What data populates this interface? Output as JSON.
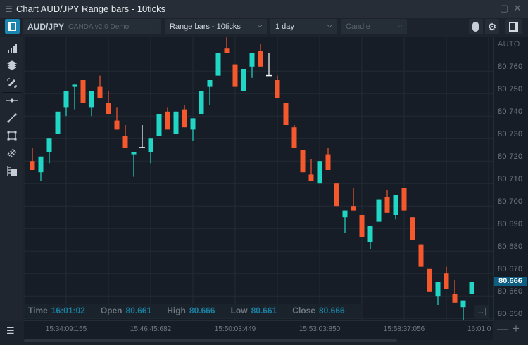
{
  "window": {
    "title": "Chart AUD/JPY Range bars - 10ticks"
  },
  "toolbar": {
    "symbol": "AUD/JPY",
    "broker": "OANDA v2.0 Demo",
    "chart_type": "Range bars - 10ticks",
    "period": "1 day",
    "style": "Candle"
  },
  "left_tools": [
    "indicators-icon",
    "layers-icon",
    "draw-edit-icon",
    "horizontal-line-icon",
    "trend-line-icon",
    "rectangle-icon",
    "fibonacci-icon",
    "object-list-icon"
  ],
  "ohlc": {
    "time_label": "Time",
    "time": "16:01:02",
    "open_label": "Open",
    "open": "80.661",
    "high_label": "High",
    "high": "80.666",
    "low_label": "Low",
    "low": "80.661",
    "close_label": "Close",
    "close": "80.666"
  },
  "yaxis": {
    "auto_label": "AUTO",
    "current_price": "80.666"
  },
  "colors": {
    "up": "#22d6c6",
    "down": "#f5582d",
    "doji": "#ffffff",
    "background": "#161d26",
    "price_tag": "#0d5e80"
  },
  "chart_data": {
    "type": "candlestick",
    "title": "",
    "y_ticks": [
      "80.760",
      "80.750",
      "80.740",
      "80.730",
      "80.720",
      "80.710",
      "80.700",
      "80.690",
      "80.680",
      "80.670",
      "80.660",
      "80.650"
    ],
    "ylim": [
      80.647,
      80.778
    ],
    "x_ticks": [
      "15:34:09:155",
      "15:46:45:682",
      "15:50:03:449",
      "15:53:03:850",
      "15:58:37:056",
      "16:01:0"
    ],
    "x_tick_bar_index": [
      4,
      14,
      24,
      34,
      44,
      54
    ],
    "grid": true,
    "candles": [
      [
        80.72,
        80.726,
        80.716,
        80.716
      ],
      [
        80.715,
        80.722,
        80.711,
        80.722
      ],
      [
        80.724,
        80.73,
        80.719,
        80.73
      ],
      [
        80.732,
        80.742,
        80.732,
        80.742
      ],
      [
        80.744,
        80.751,
        80.74,
        80.751
      ],
      [
        80.753,
        80.754,
        80.743,
        80.754
      ],
      [
        80.756,
        80.756,
        80.746,
        80.746
      ],
      [
        80.744,
        80.751,
        80.74,
        80.751
      ],
      [
        80.753,
        80.758,
        80.748,
        80.748
      ],
      [
        80.746,
        80.751,
        80.741,
        80.741
      ],
      [
        80.738,
        80.744,
        80.734,
        80.734
      ],
      [
        80.731,
        80.736,
        80.726,
        80.726
      ],
      [
        80.723,
        80.724,
        80.713,
        80.724
      ],
      [
        80.726,
        80.736,
        80.726,
        80.726
      ],
      [
        80.724,
        80.73,
        80.719,
        80.73
      ],
      [
        80.731,
        80.741,
        80.731,
        80.741
      ],
      [
        80.742,
        80.744,
        80.734,
        80.734
      ],
      [
        80.732,
        80.742,
        80.732,
        80.742
      ],
      [
        80.743,
        80.745,
        80.735,
        80.735
      ],
      [
        80.734,
        80.739,
        80.729,
        80.739
      ],
      [
        80.741,
        80.751,
        80.741,
        80.751
      ],
      [
        80.753,
        80.756,
        80.745,
        80.756
      ],
      [
        80.758,
        80.768,
        80.758,
        80.768
      ],
      [
        80.77,
        80.775,
        80.768,
        80.768
      ],
      [
        80.763,
        80.763,
        80.753,
        80.753
      ],
      [
        80.751,
        80.761,
        80.751,
        80.761
      ],
      [
        80.762,
        80.768,
        80.757,
        80.768
      ],
      [
        80.769,
        80.772,
        80.762,
        80.762
      ],
      [
        80.758,
        80.768,
        80.758,
        80.758
      ],
      [
        80.756,
        80.758,
        80.748,
        80.748
      ],
      [
        80.746,
        80.746,
        80.736,
        80.736
      ],
      [
        80.735,
        80.736,
        80.726,
        80.726
      ],
      [
        80.725,
        80.725,
        80.715,
        80.715
      ],
      [
        80.714,
        80.721,
        80.711,
        80.711
      ],
      [
        80.71,
        80.72,
        80.71,
        80.72
      ],
      [
        80.723,
        80.726,
        80.716,
        80.716
      ],
      [
        80.71,
        80.71,
        80.7,
        80.7
      ],
      [
        80.695,
        80.698,
        80.688,
        80.698
      ],
      [
        80.7,
        80.708,
        80.698,
        80.698
      ],
      [
        80.696,
        80.696,
        80.686,
        80.686
      ],
      [
        80.684,
        80.691,
        80.681,
        80.691
      ],
      [
        80.693,
        80.703,
        80.693,
        80.703
      ],
      [
        80.704,
        80.707,
        80.697,
        80.697
      ],
      [
        80.696,
        80.705,
        80.694,
        80.705
      ],
      [
        80.708,
        80.708,
        80.698,
        80.698
      ],
      [
        80.695,
        80.695,
        80.685,
        80.685
      ],
      [
        80.683,
        80.683,
        80.673,
        80.673
      ],
      [
        80.672,
        80.672,
        80.662,
        80.662
      ],
      [
        80.66,
        80.666,
        80.656,
        80.666
      ],
      [
        80.67,
        80.673,
        80.663,
        80.663
      ],
      [
        80.661,
        80.667,
        80.657,
        80.657
      ],
      [
        80.655,
        80.658,
        80.649,
        80.658
      ],
      [
        80.661,
        80.666,
        80.661,
        80.666
      ]
    ],
    "candle_fields": [
      "open",
      "high",
      "low",
      "close"
    ]
  }
}
